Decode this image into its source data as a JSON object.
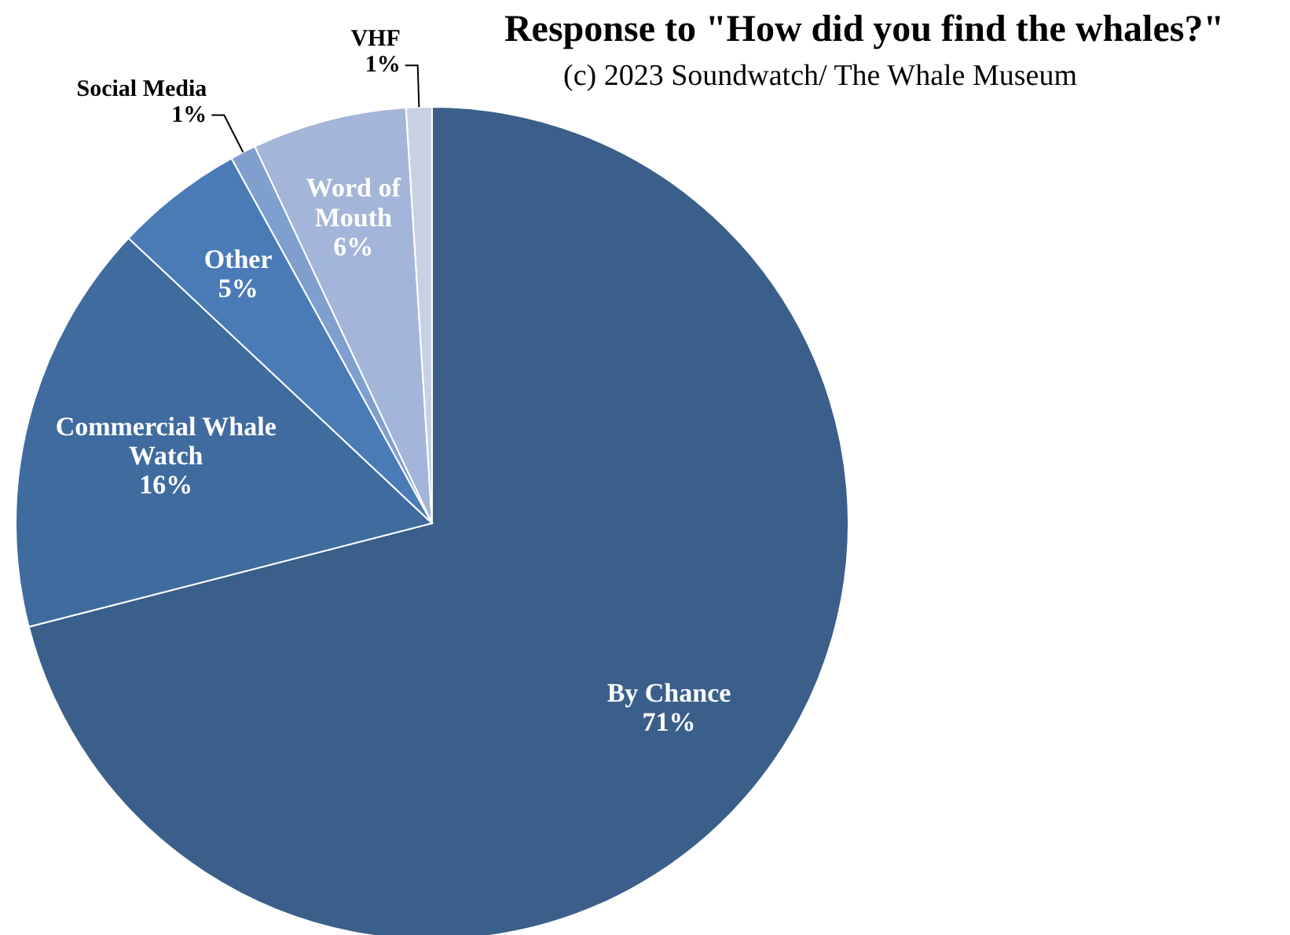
{
  "chart_data": {
    "type": "pie",
    "title": "Response to \"How did you find the whales?\"",
    "subtitle": "(c) 2023 Soundwatch/ The Whale Museum",
    "categories": [
      "By Chance",
      "Commercial Whale Watch",
      "Other",
      "Social Media",
      "Word of Mouth",
      "VHF"
    ],
    "values": [
      71,
      16,
      5,
      1,
      6,
      1
    ],
    "value_labels": [
      "71%",
      "16%",
      "5%",
      "1%",
      "6%",
      "1%"
    ],
    "colors": [
      "#3a5f8a",
      "#3f6b9e",
      "#4a7bb7",
      "#7f9fcf",
      "#a3b5d8",
      "#c8d0e4"
    ]
  }
}
